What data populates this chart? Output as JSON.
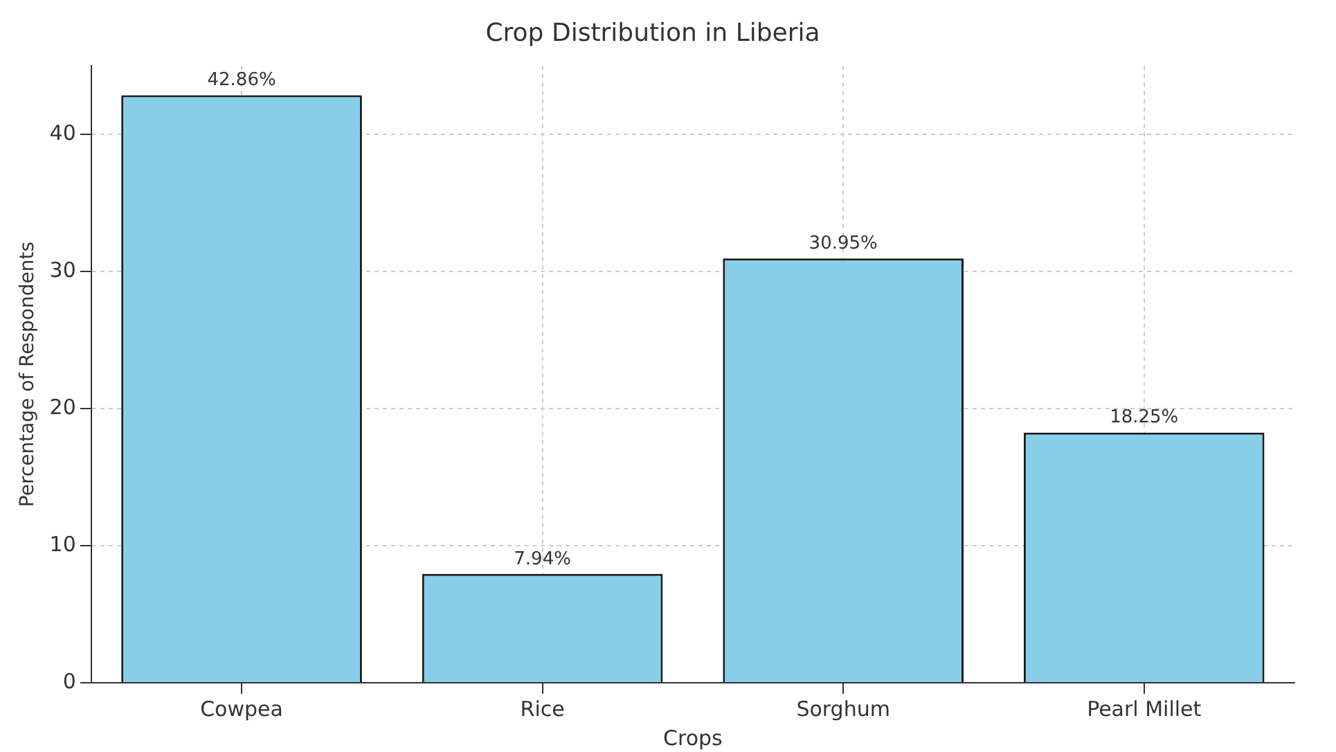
{
  "chart_data": {
    "type": "bar",
    "title": "Crop Distribution in Liberia",
    "xlabel": "Crops",
    "ylabel": "Percentage of Respondents",
    "categories": [
      "Cowpea",
      "Rice",
      "Sorghum",
      "Pearl Millet"
    ],
    "values": [
      42.86,
      7.94,
      30.95,
      18.25
    ],
    "value_labels": [
      "42.86%",
      "7.94%",
      "30.95%",
      "18.25%"
    ],
    "color": "#87ceeb",
    "ylim": [
      0,
      45
    ],
    "yticks": [
      0,
      10,
      20,
      30,
      40
    ],
    "grid": true,
    "legend": false
  }
}
